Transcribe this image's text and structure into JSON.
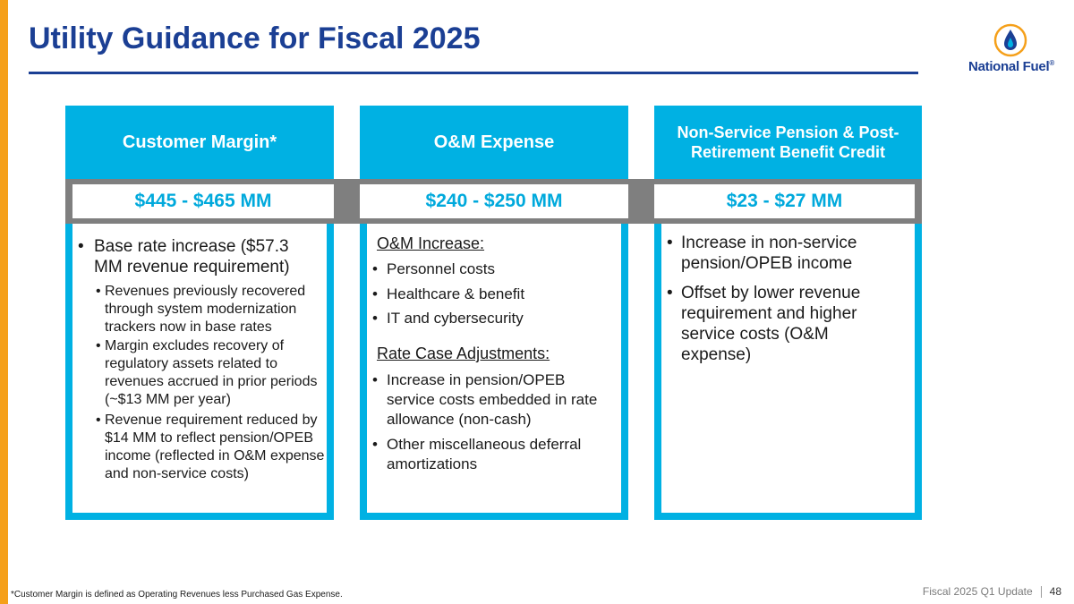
{
  "header": {
    "title": "Utility Guidance for Fiscal 2025",
    "logo_text": "National Fuel",
    "logo_mark": "®",
    "logo_icon": "flame-drop-icon"
  },
  "colors": {
    "title_blue": "#1b3f94",
    "accent_cyan": "#00b1e3",
    "band_gray": "#7f7f7f",
    "left_bar_orange": "#f5a01a"
  },
  "columns": [
    {
      "header": "Customer Margin*",
      "value": "$445 - $465 MM",
      "bullets": [
        {
          "text": "Base rate increase ($57.3 MM revenue requirement)",
          "sub": [
            "Revenues previously recovered through system modernization trackers now in base rates",
            "Margin excludes recovery of regulatory assets related to revenues accrued in prior periods (~$13 MM per year)",
            "Revenue requirement reduced by $14 MM to reflect pension/OPEB income (reflected in O&M expense and non-service costs)"
          ]
        }
      ]
    },
    {
      "header": "O&M Expense",
      "value": "$240 - $250 MM",
      "sections": [
        {
          "title": "O&M Increase:",
          "items": [
            "Personnel costs",
            "Healthcare & benefit",
            "IT and cybersecurity"
          ]
        },
        {
          "title": "Rate Case Adjustments:",
          "items": [
            "Increase in pension/OPEB service costs embedded in rate allowance (non-cash)",
            "Other miscellaneous deferral amortizations"
          ]
        }
      ]
    },
    {
      "header": "Non-Service Pension & Post-Retirement Benefit Credit",
      "value": "$23 - $27 MM",
      "bullets": [
        "Increase in non-service pension/OPEB income",
        "Offset by lower revenue requirement and higher service costs (O&M expense)"
      ]
    }
  ],
  "footer": {
    "footnote": "*Customer Margin is defined as Operating Revenues less Purchased Gas Expense.",
    "label": "Fiscal 2025 Q1 Update",
    "page_number": "48"
  }
}
